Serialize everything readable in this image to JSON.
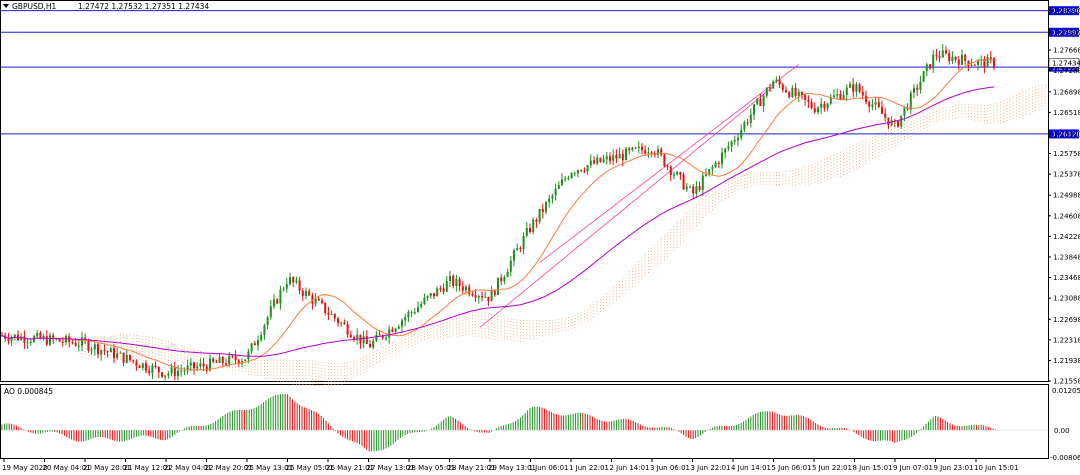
{
  "header": {
    "symbol_label": "GBPUSD,H1",
    "ohlc_text": "1.27472 1.27532 1.27351 1.27434"
  },
  "ao_panel": {
    "label": "AO 0.000845",
    "scale_top": "0.012052",
    "scale_zero": "0.00",
    "scale_bottom": "-0.008067"
  },
  "colors": {
    "bull": "#1f8f1f",
    "bear": "#e01010",
    "level_line": "#1b1bd6",
    "price_badge": "#0a0adc",
    "ma_fast": "#ff7a3a",
    "ma_slow": "#b000c8",
    "channel": "#ff3d9a",
    "cloud": "#f2a070"
  },
  "chart_data": [
    {
      "type": "candlestick",
      "title": "GBPUSD,H1",
      "xlabel": "",
      "ylabel": "",
      "ylim": [
        1.21558,
        1.28556
      ],
      "y_ticks": [
        "1.28396",
        "1.27997",
        "1.27668",
        "1.27288",
        "1.26898",
        "1.26518",
        "1.26120",
        "1.25758",
        "1.25378",
        "1.24988",
        "1.24608",
        "1.24228",
        "1.23848",
        "1.23468",
        "1.23088",
        "1.22698",
        "1.22318",
        "1.21938",
        "1.21558"
      ],
      "x_ticks": [
        "19 May 2020",
        "20 May 04:01",
        "20 May 20:01",
        "21 May 12:01",
        "22 May 04:01",
        "22 May 20:01",
        "25 May 13:01",
        "26 May 05:01",
        "26 May 21:01",
        "27 May 13:01",
        "28 May 05:01",
        "28 May 21:01",
        "29 May 13:01",
        "1 Jun 06:01",
        "1 Jun 22:01",
        "2 Jun 14:01",
        "3 Jun 06:01",
        "3 Jun 22:01",
        "4 Jun 14:01",
        "5 Jun 06:01",
        "5 Jun 22:01",
        "8 Jun 15:01",
        "9 Jun 07:01",
        "9 Jun 23:01",
        "10 Jun 15:01"
      ],
      "horizontal_levels": [
        {
          "value": 1.28396,
          "label": "1.28396"
        },
        {
          "value": 1.27997,
          "label": "1.27997"
        },
        {
          "value": 1.27353,
          "label": "1.27353"
        },
        {
          "value": 1.2612,
          "label": "1.26120"
        }
      ],
      "price_marker": {
        "value": 1.27434,
        "label": "1.27434"
      },
      "key_points": [
        {
          "x": "19 May 2020",
          "close": 1.224
        },
        {
          "x": "20 May 20:01",
          "close": 1.2225
        },
        {
          "x": "22 May 04:01",
          "close": 1.217
        },
        {
          "x": "25 May 13:01",
          "close": 1.22
        },
        {
          "x": "26 May 05:01",
          "close": 1.2345
        },
        {
          "x": "27 May 13:01",
          "close": 1.222
        },
        {
          "x": "28 May 21:01",
          "close": 1.234
        },
        {
          "x": "29 May 13:01",
          "close": 1.231
        },
        {
          "x": "1 Jun 06:01",
          "close": 1.244
        },
        {
          "x": "1 Jun 22:01",
          "close": 1.2545
        },
        {
          "x": "3 Jun 06:01",
          "close": 1.2588
        },
        {
          "x": "3 Jun 22:01",
          "close": 1.25
        },
        {
          "x": "4 Jun 14:01",
          "close": 1.26
        },
        {
          "x": "5 Jun 06:01",
          "close": 1.271
        },
        {
          "x": "5 Jun 22:01",
          "close": 1.266
        },
        {
          "x": "8 Jun 15:01",
          "close": 1.27
        },
        {
          "x": "9 Jun 07:01",
          "close": 1.2625
        },
        {
          "x": "9 Jun 23:01",
          "close": 1.276
        },
        {
          "x": "10 Jun 15:01",
          "close": 1.27434
        }
      ]
    },
    {
      "type": "bar",
      "title": "AO 0.000845",
      "ylim": [
        -0.008067,
        0.012052
      ],
      "y_ticks": [
        "0.012052",
        "0.00",
        "-0.008067"
      ],
      "key_points": [
        {
          "x": "19 May 2020",
          "value": 0.0015
        },
        {
          "x": "20 May 20:01",
          "value": -0.003
        },
        {
          "x": "22 May 04:01",
          "value": -0.0022
        },
        {
          "x": "26 May 05:01",
          "value": 0.011
        },
        {
          "x": "27 May 13:01",
          "value": -0.007
        },
        {
          "x": "28 May 21:01",
          "value": 0.0035
        },
        {
          "x": "29 May 13:01",
          "value": -0.0015
        },
        {
          "x": "1 Jun 06:01",
          "value": 0.0065
        },
        {
          "x": "3 Jun 06:01",
          "value": 0.0015
        },
        {
          "x": "3 Jun 22:01",
          "value": -0.002
        },
        {
          "x": "5 Jun 06:01",
          "value": 0.006
        },
        {
          "x": "8 Jun 15:01",
          "value": -0.001
        },
        {
          "x": "9 Jun 07:01",
          "value": -0.0045
        },
        {
          "x": "9 Jun 23:01",
          "value": 0.0035
        },
        {
          "x": "10 Jun 15:01",
          "value": 0.000845
        }
      ]
    }
  ]
}
